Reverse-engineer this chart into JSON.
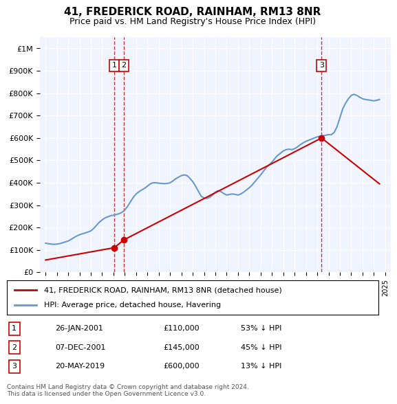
{
  "title": "41, FREDERICK ROAD, RAINHAM, RM13 8NR",
  "subtitle": "Price paid vs. HM Land Registry's House Price Index (HPI)",
  "hpi_color": "#6699cc",
  "price_color": "#cc0000",
  "dashed_line_color": "#cc0000",
  "background_color": "#ffffff",
  "plot_bg_color": "#f0f4ff",
  "grid_color": "#ffffff",
  "ylim": [
    0,
    1050000
  ],
  "yticks": [
    0,
    100000,
    200000,
    300000,
    400000,
    500000,
    600000,
    700000,
    800000,
    900000,
    1000000
  ],
  "ytick_labels": [
    "£0",
    "£100K",
    "£200K",
    "£300K",
    "£400K",
    "£500K",
    "£600K",
    "£700K",
    "£800K",
    "£900K",
    "£1M"
  ],
  "transactions": [
    {
      "num": 1,
      "date": "26-JAN-2001",
      "price": 110000,
      "pct": "53% ↓ HPI",
      "x": 2001.07
    },
    {
      "num": 2,
      "date": "07-DEC-2001",
      "price": 145000,
      "pct": "45% ↓ HPI",
      "x": 2001.92
    },
    {
      "num": 3,
      "date": "20-MAY-2019",
      "price": 600000,
      "pct": "13% ↓ HPI",
      "x": 2019.38
    }
  ],
  "legend_label_red": "41, FREDERICK ROAD, RAINHAM, RM13 8NR (detached house)",
  "legend_label_blue": "HPI: Average price, detached house, Havering",
  "footnote": "Contains HM Land Registry data © Crown copyright and database right 2024.\nThis data is licensed under the Open Government Licence v3.0.",
  "hpi_data": {
    "years": [
      1995.0,
      1995.25,
      1995.5,
      1995.75,
      1996.0,
      1996.25,
      1996.5,
      1996.75,
      1997.0,
      1997.25,
      1997.5,
      1997.75,
      1998.0,
      1998.25,
      1998.5,
      1998.75,
      1999.0,
      1999.25,
      1999.5,
      1999.75,
      2000.0,
      2000.25,
      2000.5,
      2000.75,
      2001.0,
      2001.25,
      2001.5,
      2001.75,
      2002.0,
      2002.25,
      2002.5,
      2002.75,
      2003.0,
      2003.25,
      2003.5,
      2003.75,
      2004.0,
      2004.25,
      2004.5,
      2004.75,
      2005.0,
      2005.25,
      2005.5,
      2005.75,
      2006.0,
      2006.25,
      2006.5,
      2006.75,
      2007.0,
      2007.25,
      2007.5,
      2007.75,
      2008.0,
      2008.25,
      2008.5,
      2008.75,
      2009.0,
      2009.25,
      2009.5,
      2009.75,
      2010.0,
      2010.25,
      2010.5,
      2010.75,
      2011.0,
      2011.25,
      2011.5,
      2011.75,
      2012.0,
      2012.25,
      2012.5,
      2012.75,
      2013.0,
      2013.25,
      2013.5,
      2013.75,
      2014.0,
      2014.25,
      2014.5,
      2014.75,
      2015.0,
      2015.25,
      2015.5,
      2015.75,
      2016.0,
      2016.25,
      2016.5,
      2016.75,
      2017.0,
      2017.25,
      2017.5,
      2017.75,
      2018.0,
      2018.25,
      2018.5,
      2018.75,
      2019.0,
      2019.25,
      2019.5,
      2019.75,
      2020.0,
      2020.25,
      2020.5,
      2020.75,
      2021.0,
      2021.25,
      2021.5,
      2021.75,
      2022.0,
      2022.25,
      2022.5,
      2022.75,
      2023.0,
      2023.25,
      2023.5,
      2023.75,
      2024.0,
      2024.25,
      2024.5
    ],
    "values": [
      130000,
      128000,
      126000,
      125000,
      126000,
      128000,
      132000,
      136000,
      140000,
      147000,
      155000,
      162000,
      168000,
      172000,
      176000,
      180000,
      185000,
      196000,
      210000,
      224000,
      234000,
      243000,
      248000,
      253000,
      255000,
      258000,
      262000,
      268000,
      278000,
      295000,
      315000,
      335000,
      350000,
      360000,
      368000,
      375000,
      385000,
      395000,
      400000,
      400000,
      398000,
      397000,
      396000,
      397000,
      400000,
      408000,
      418000,
      425000,
      432000,
      435000,
      432000,
      420000,
      405000,
      385000,
      362000,
      340000,
      332000,
      330000,
      335000,
      345000,
      358000,
      365000,
      360000,
      352000,
      345000,
      348000,
      350000,
      348000,
      345000,
      350000,
      358000,
      368000,
      378000,
      390000,
      405000,
      420000,
      435000,
      452000,
      468000,
      480000,
      492000,
      508000,
      522000,
      532000,
      542000,
      548000,
      550000,
      548000,
      552000,
      560000,
      570000,
      578000,
      585000,
      590000,
      595000,
      600000,
      605000,
      608000,
      610000,
      612000,
      615000,
      615000,
      625000,
      650000,
      690000,
      730000,
      755000,
      775000,
      790000,
      795000,
      790000,
      782000,
      775000,
      772000,
      770000,
      768000,
      766000,
      768000,
      772000
    ]
  },
  "price_data": {
    "years": [
      1995.0,
      2001.07,
      2001.92,
      2019.38,
      2024.5
    ],
    "values": [
      55000,
      110000,
      145000,
      600000,
      395000
    ]
  }
}
